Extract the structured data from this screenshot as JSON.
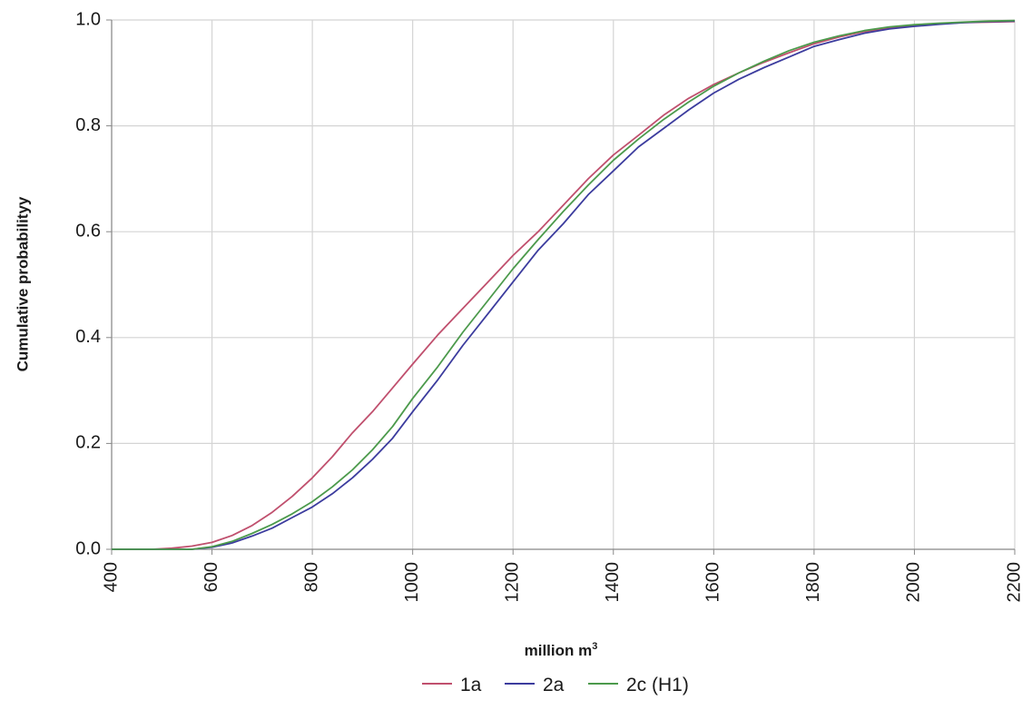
{
  "chart_data": {
    "type": "line",
    "title": "",
    "xlabel": "million m",
    "xlabel_superscript": "3",
    "ylabel": "Cumulative probabilityy",
    "xlim": [
      400,
      2200
    ],
    "ylim": [
      0,
      1
    ],
    "x_ticks": [
      "400",
      "600",
      "800",
      "1000",
      "1200",
      "1400",
      "1600",
      "1800",
      "2000",
      "2200"
    ],
    "y_ticks": [
      "0.0",
      "0.2",
      "0.4",
      "0.6",
      "0.8",
      "1.0"
    ],
    "grid": true,
    "legend_position": "bottom",
    "series": [
      {
        "name": "1a",
        "color": "#c0506e",
        "x": [
          480,
          520,
          560,
          600,
          640,
          680,
          720,
          760,
          800,
          840,
          880,
          920,
          960,
          1000,
          1050,
          1100,
          1150,
          1200,
          1250,
          1300,
          1350,
          1400,
          1450,
          1500,
          1550,
          1600,
          1650,
          1700,
          1750,
          1800,
          1850,
          1900,
          1950,
          2000,
          2050,
          2100,
          2150,
          2200
        ],
        "y": [
          0.0,
          0.002,
          0.006,
          0.013,
          0.026,
          0.045,
          0.07,
          0.1,
          0.135,
          0.175,
          0.22,
          0.26,
          0.305,
          0.35,
          0.405,
          0.455,
          0.505,
          0.555,
          0.6,
          0.65,
          0.7,
          0.745,
          0.782,
          0.82,
          0.852,
          0.878,
          0.9,
          0.92,
          0.938,
          0.955,
          0.968,
          0.978,
          0.985,
          0.99,
          0.993,
          0.995,
          0.996,
          0.997
        ]
      },
      {
        "name": "2a",
        "color": "#3c3c9e",
        "x": [
          560,
          600,
          640,
          680,
          720,
          760,
          800,
          840,
          880,
          920,
          960,
          1000,
          1050,
          1100,
          1150,
          1200,
          1250,
          1300,
          1350,
          1400,
          1450,
          1500,
          1550,
          1600,
          1650,
          1700,
          1750,
          1800,
          1850,
          1900,
          1950,
          2000,
          2050,
          2100,
          2150,
          2200
        ],
        "y": [
          0.0,
          0.004,
          0.012,
          0.025,
          0.04,
          0.06,
          0.08,
          0.105,
          0.135,
          0.17,
          0.21,
          0.26,
          0.32,
          0.385,
          0.445,
          0.505,
          0.565,
          0.615,
          0.67,
          0.715,
          0.76,
          0.795,
          0.83,
          0.862,
          0.888,
          0.91,
          0.93,
          0.95,
          0.963,
          0.975,
          0.983,
          0.988,
          0.992,
          0.995,
          0.997,
          0.998
        ]
      },
      {
        "name": "2c (H1)",
        "color": "#4c9a4c",
        "x": [
          560,
          600,
          640,
          680,
          720,
          760,
          800,
          840,
          880,
          920,
          960,
          1000,
          1050,
          1100,
          1150,
          1200,
          1250,
          1300,
          1350,
          1400,
          1450,
          1500,
          1550,
          1600,
          1650,
          1700,
          1750,
          1800,
          1850,
          1900,
          1950,
          2000,
          2050,
          2100,
          2150,
          2200
        ],
        "y": [
          0.0,
          0.005,
          0.015,
          0.03,
          0.047,
          0.067,
          0.09,
          0.118,
          0.15,
          0.188,
          0.232,
          0.285,
          0.345,
          0.41,
          0.47,
          0.53,
          0.585,
          0.638,
          0.688,
          0.735,
          0.775,
          0.812,
          0.845,
          0.875,
          0.9,
          0.922,
          0.942,
          0.958,
          0.97,
          0.98,
          0.987,
          0.991,
          0.994,
          0.996,
          0.998,
          0.999
        ]
      }
    ]
  }
}
